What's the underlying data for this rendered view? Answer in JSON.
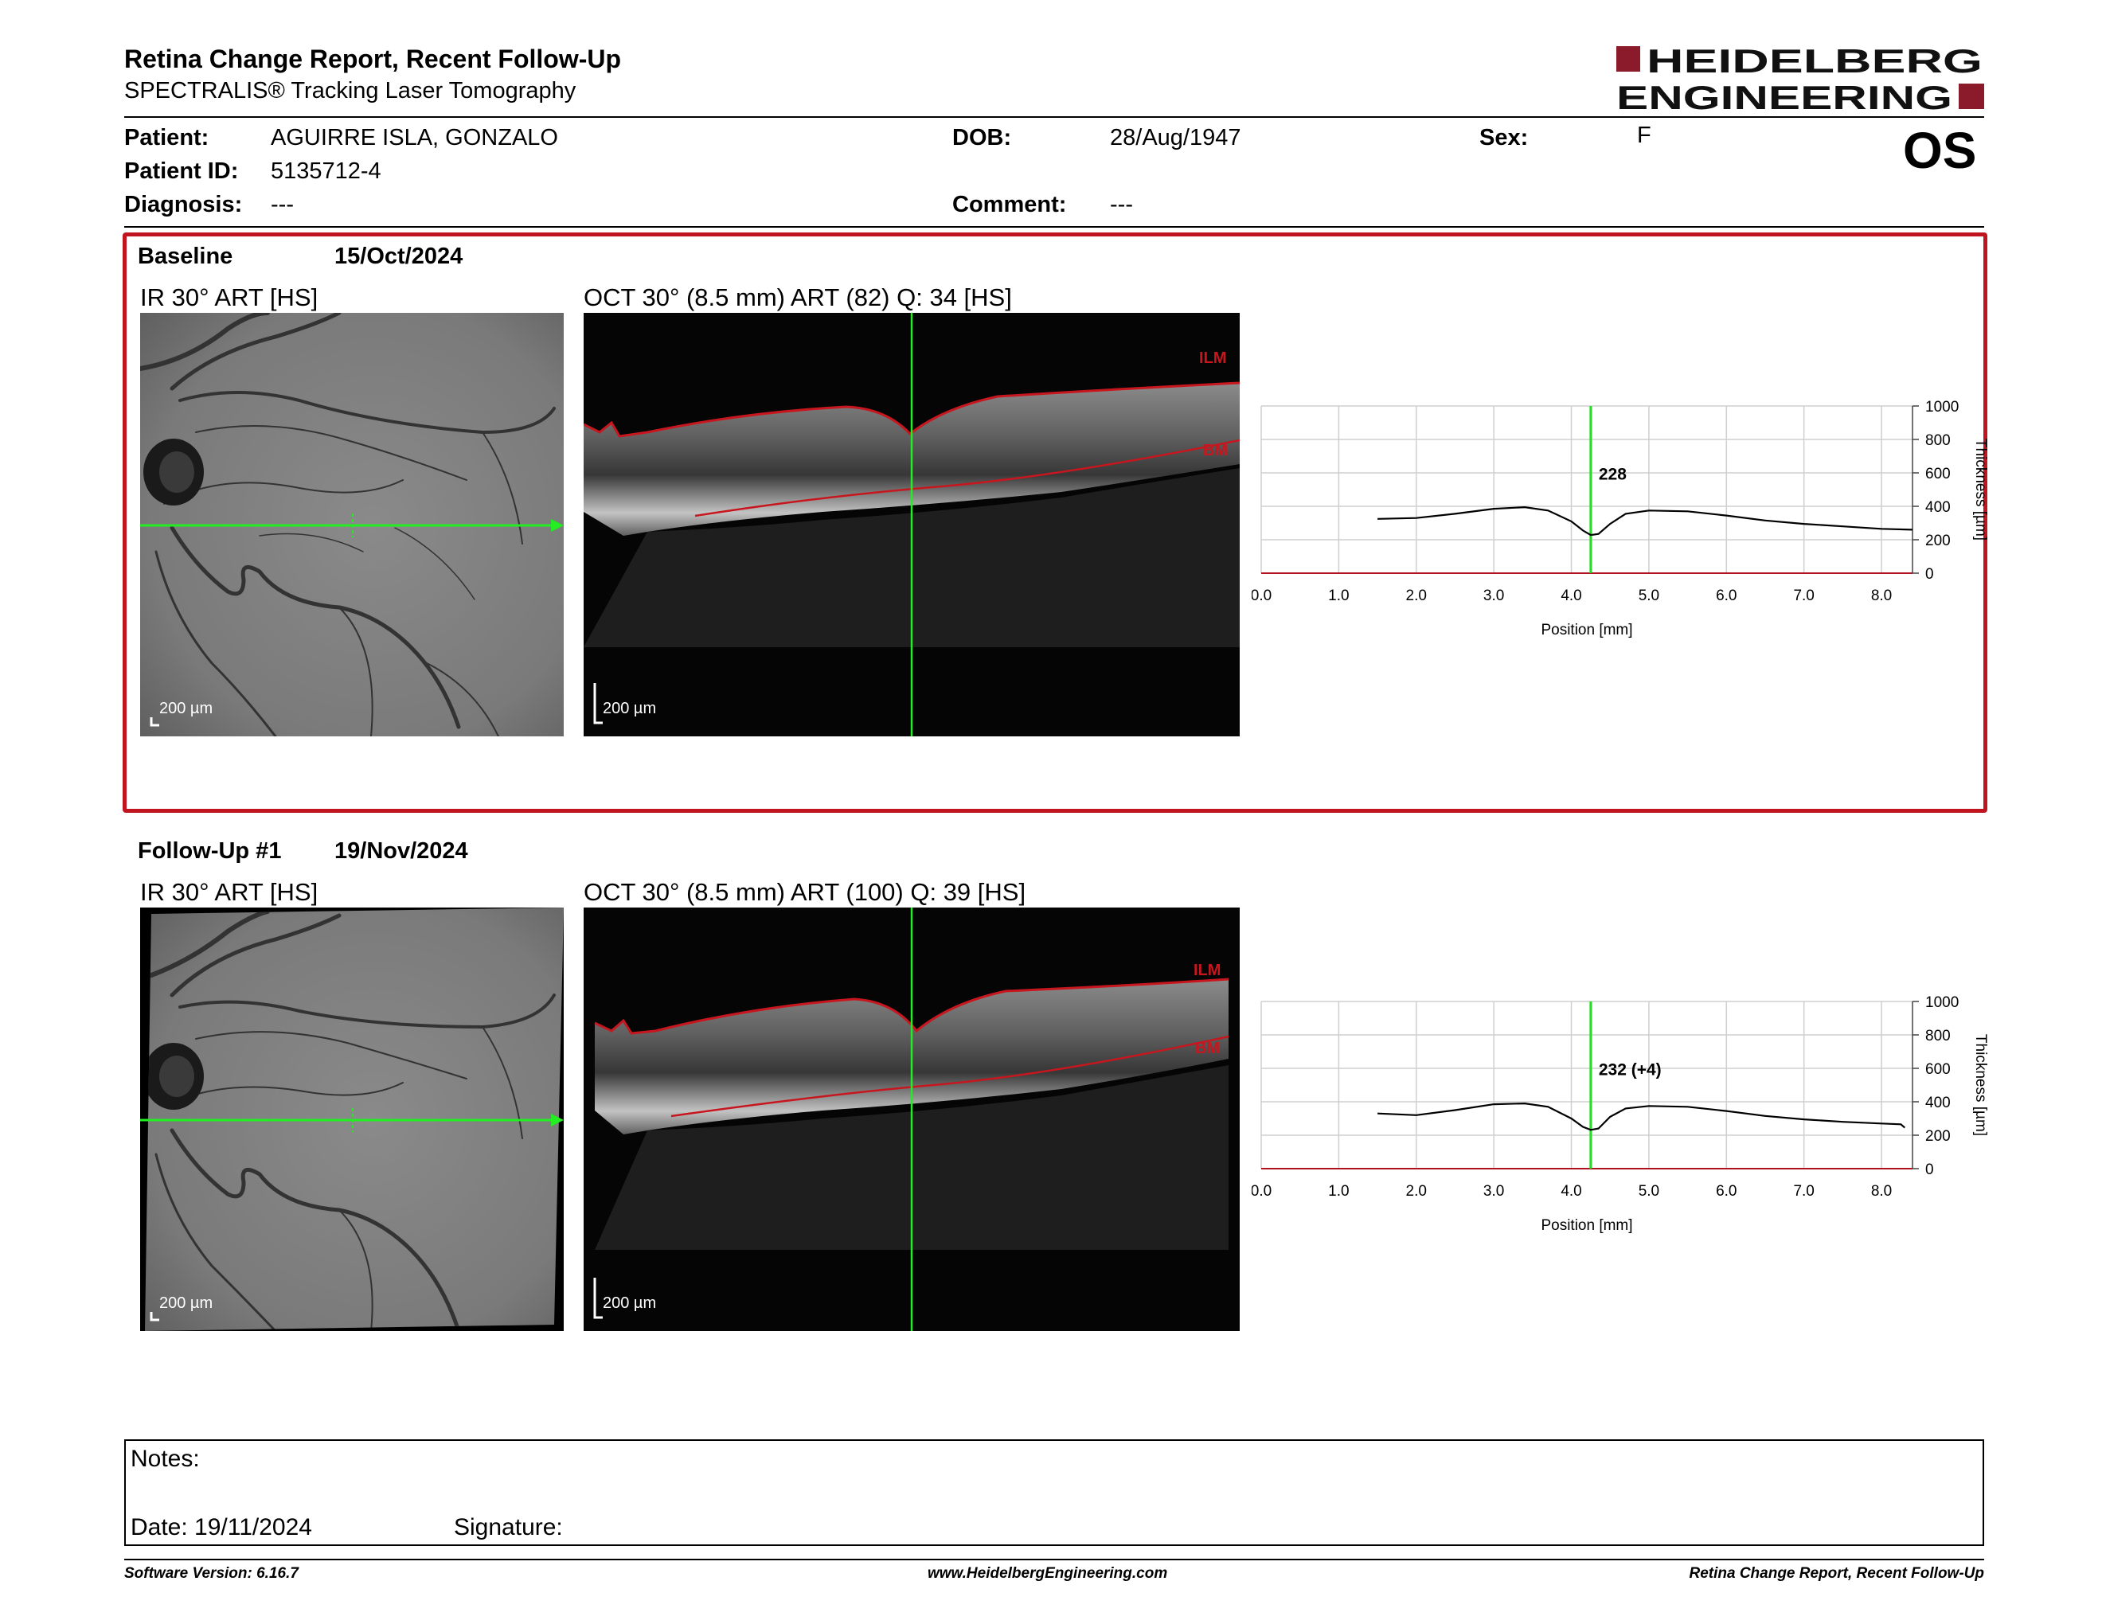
{
  "header": {
    "title": "Retina Change Report, Recent Follow-Up",
    "subtitle": "SPECTRALIS® Tracking Laser Tomography",
    "logo_line1": "HEIDELBERG",
    "logo_line2": "ENGINEERING",
    "brand_color": "#8b1a2b"
  },
  "patient": {
    "patient_label": "Patient:",
    "patient_value": "AGUIRRE ISLA, GONZALO",
    "id_label": "Patient ID:",
    "id_value": "5135712-4",
    "diagnosis_label": "Diagnosis:",
    "diagnosis_value": "---",
    "dob_label": "DOB:",
    "dob_value": "28/Aug/1947",
    "comment_label": "Comment:",
    "comment_value": "---",
    "sex_label": "Sex:",
    "sex_value": "F",
    "eye": "OS"
  },
  "baseline": {
    "label": "Baseline",
    "date": "15/Oct/2024",
    "ir_label": "IR 30° ART [HS]",
    "oct_label": "OCT 30° (8.5 mm) ART (82) Q: 34 [HS]",
    "scale_ir": "200 µm",
    "scale_oct": "200 µm",
    "ilm": "ILM",
    "bm": "BM",
    "highlight_color": "#c0151f"
  },
  "followup": {
    "label": "Follow-Up #1",
    "date": "19/Nov/2024",
    "ir_label": "IR 30° ART [HS]",
    "oct_label": "OCT 30° (8.5 mm) ART (100) Q: 39 [HS]",
    "scale_ir": "200 µm",
    "scale_oct": "200 µm",
    "ilm": "ILM",
    "bm": "BM"
  },
  "chart_data": [
    {
      "type": "line",
      "id": "baseline",
      "xlabel": "Position [mm]",
      "ylabel": "Thickness [µm]",
      "xlim": [
        0,
        8.4
      ],
      "ylim": [
        0,
        1000
      ],
      "xticks": [
        "0.0",
        "1.0",
        "2.0",
        "3.0",
        "4.0",
        "5.0",
        "6.0",
        "7.0",
        "8.0"
      ],
      "yticks": [
        "0",
        "200",
        "400",
        "600",
        "800",
        "1000"
      ],
      "grid": true,
      "marker_x": 4.25,
      "marker_label": "228",
      "x": [
        1.5,
        2.0,
        2.5,
        3.0,
        3.4,
        3.7,
        4.0,
        4.15,
        4.25,
        4.35,
        4.5,
        4.7,
        5.0,
        5.5,
        6.0,
        6.5,
        7.0,
        7.5,
        8.0,
        8.4
      ],
      "y": [
        325,
        330,
        355,
        385,
        395,
        375,
        310,
        255,
        228,
        235,
        295,
        355,
        375,
        370,
        345,
        315,
        295,
        280,
        265,
        260
      ]
    },
    {
      "type": "line",
      "id": "followup",
      "xlabel": "Position [mm]",
      "ylabel": "Thickness [µm]",
      "xlim": [
        0,
        8.4
      ],
      "ylim": [
        0,
        1000
      ],
      "xticks": [
        "0.0",
        "1.0",
        "2.0",
        "3.0",
        "4.0",
        "5.0",
        "6.0",
        "7.0",
        "8.0"
      ],
      "yticks": [
        "0",
        "200",
        "400",
        "600",
        "800",
        "1000"
      ],
      "grid": true,
      "marker_x": 4.25,
      "marker_label": "232 (+4)",
      "x": [
        1.5,
        2.0,
        2.5,
        3.0,
        3.4,
        3.7,
        4.0,
        4.15,
        4.25,
        4.35,
        4.5,
        4.7,
        5.0,
        5.5,
        6.0,
        6.5,
        7.0,
        7.5,
        8.0,
        8.25,
        8.3
      ],
      "y": [
        330,
        320,
        350,
        385,
        390,
        370,
        300,
        250,
        232,
        240,
        310,
        360,
        375,
        370,
        345,
        315,
        295,
        280,
        270,
        265,
        245
      ]
    }
  ],
  "notes": {
    "notes_label": "Notes:",
    "date_label": "Date: 19/11/2024",
    "signature_label": "Signature:"
  },
  "footer": {
    "software": "Software Version: 6.16.7",
    "website": "www.HeidelbergEngineering.com",
    "report": "Retina Change Report, Recent Follow-Up"
  }
}
